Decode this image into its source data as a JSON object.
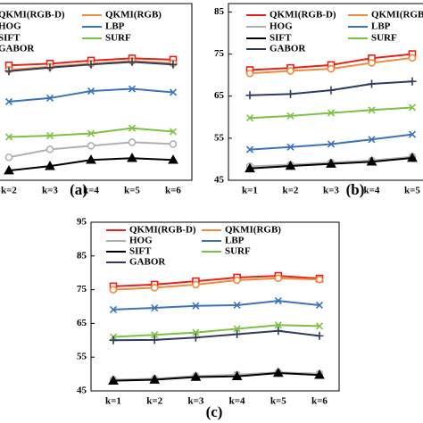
{
  "chart_data": [
    {
      "type": "line",
      "label": "(a)",
      "categories": [
        "k=2",
        "k=3",
        "k=4",
        "k=5",
        "k=6"
      ],
      "ylim": [
        45,
        85
      ],
      "series": [
        {
          "name": "QKMI(RGB-D)",
          "color": "#e8201c",
          "marker": "square",
          "values": [
            71.0,
            71.4,
            72.1,
            72.6,
            72.3
          ]
        },
        {
          "name": "QKMI(RGB)",
          "color": "#f08a3c",
          "marker": "circle",
          "values": [
            70.0,
            70.7,
            71.4,
            72.0,
            71.5
          ]
        },
        {
          "name": "HOG",
          "color": "#b0b0b0",
          "marker": "circle",
          "values": [
            50.2,
            52.0,
            52.8,
            53.6,
            53.2
          ]
        },
        {
          "name": "LBP",
          "color": "#3a74b8",
          "marker": "x",
          "values": [
            62.8,
            63.6,
            65.2,
            65.7,
            64.9
          ]
        },
        {
          "name": "SIFT",
          "color": "#000000",
          "marker": "triangle",
          "values": [
            47.2,
            48.2,
            49.6,
            50.0,
            49.6
          ]
        },
        {
          "name": "SURF",
          "color": "#7cc242",
          "marker": "x",
          "values": [
            54.8,
            55.1,
            55.6,
            56.8,
            56.0
          ]
        },
        {
          "name": "GABOR",
          "color": "#2e3b5e",
          "marker": "plus",
          "values": [
            69.7,
            70.5,
            71.2,
            71.8,
            71.2
          ]
        }
      ]
    },
    {
      "type": "line",
      "label": "(b)",
      "categories": [
        "k=1",
        "k=2",
        "k=3",
        "k=4",
        "k=5"
      ],
      "ylim": [
        45,
        87
      ],
      "yticks": [
        45,
        55,
        65,
        75,
        85
      ],
      "series": [
        {
          "name": "QKMI(RGB-D)",
          "color": "#e8201c",
          "marker": "square",
          "values": [
            71.2,
            71.7,
            72.4,
            74.0,
            75.0
          ]
        },
        {
          "name": "QKMI(RGB)",
          "color": "#f08a3c",
          "marker": "circle",
          "values": [
            70.4,
            71.0,
            71.5,
            72.9,
            74.1
          ]
        },
        {
          "name": "HOG",
          "color": "#b0b0b0",
          "marker": "circle",
          "values": [
            48.3,
            48.7,
            49.2,
            49.7,
            50.6
          ]
        },
        {
          "name": "LBP",
          "color": "#3a74b8",
          "marker": "x",
          "values": [
            52.3,
            52.9,
            53.6,
            54.7,
            55.9
          ]
        },
        {
          "name": "SIFT",
          "color": "#000000",
          "marker": "triangle",
          "values": [
            47.8,
            48.4,
            48.9,
            49.4,
            50.3
          ]
        },
        {
          "name": "SURF",
          "color": "#7cc242",
          "marker": "x",
          "values": [
            59.8,
            60.3,
            61.0,
            61.7,
            62.3
          ]
        },
        {
          "name": "GABOR",
          "color": "#2e3b5e",
          "marker": "plus",
          "values": [
            65.2,
            65.5,
            66.4,
            67.9,
            68.5
          ]
        }
      ]
    },
    {
      "type": "line",
      "label": "(c)",
      "categories": [
        "k=1",
        "k=2",
        "k=3",
        "k=4",
        "k=5",
        "k=6"
      ],
      "ylim": [
        45,
        95
      ],
      "yticks": [
        45,
        55,
        65,
        75,
        85,
        95
      ],
      "series": [
        {
          "name": "QKMI(RGB-D)",
          "color": "#e8201c",
          "marker": "square",
          "values": [
            76.0,
            76.5,
            77.5,
            78.6,
            79.1,
            78.3
          ]
        },
        {
          "name": "QKMI(RGB)",
          "color": "#f08a3c",
          "marker": "circle",
          "values": [
            75.0,
            75.6,
            76.5,
            77.8,
            78.4,
            78.0
          ]
        },
        {
          "name": "HOG",
          "color": "#b0b0b0",
          "marker": "circle",
          "values": [
            48.3,
            48.6,
            49.4,
            49.8,
            50.5,
            50.1
          ]
        },
        {
          "name": "LBP",
          "color": "#3a74b8",
          "marker": "x",
          "values": [
            69.1,
            69.6,
            70.2,
            70.4,
            71.7,
            70.4
          ]
        },
        {
          "name": "SIFT",
          "color": "#000000",
          "marker": "triangle",
          "values": [
            48.0,
            48.3,
            49.1,
            49.3,
            50.3,
            49.7
          ]
        },
        {
          "name": "SURF",
          "color": "#7cc242",
          "marker": "x",
          "values": [
            61.0,
            61.6,
            62.3,
            63.4,
            64.5,
            64.2
          ]
        },
        {
          "name": "GABOR",
          "color": "#2e3b5e",
          "marker": "plus",
          "values": [
            60.0,
            60.1,
            60.8,
            61.8,
            62.8,
            61.3
          ]
        }
      ]
    }
  ]
}
